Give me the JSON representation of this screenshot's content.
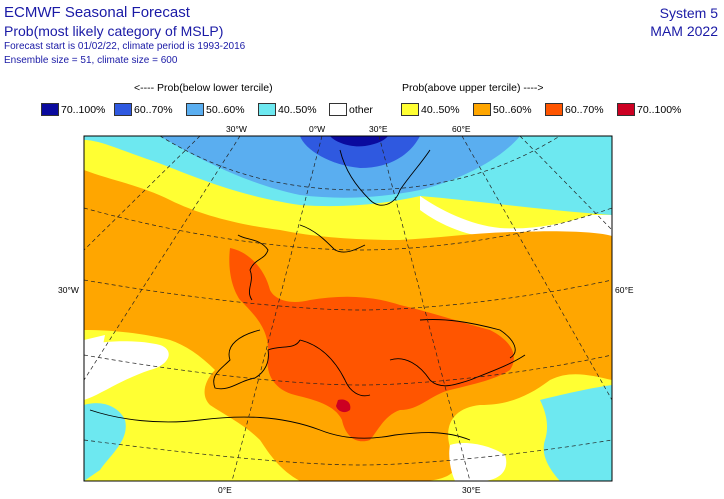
{
  "title": "ECMWF Seasonal Forecast",
  "subtitle": "Prob(most likely category of MSLP)",
  "line3": "Forecast start is 01/02/22, climate period is 1993-2016",
  "line4": "Ensemble size = 51, climate size = 600",
  "system": "System 5",
  "season": "MAM 2022",
  "legend_below": "<---- Prob(below lower tercile)",
  "legend_above": "Prob(above upper tercile) ---->",
  "legend": [
    {
      "label": "70..100%",
      "color": "#0a0a9e"
    },
    {
      "label": "60..70%",
      "color": "#2f59e0"
    },
    {
      "label": "50..60%",
      "color": "#5aaef0"
    },
    {
      "label": "40..50%",
      "color": "#6de8f0"
    },
    {
      "label": "other",
      "color": "#ffffff"
    },
    {
      "label": "40..50%",
      "color": "#ffff33"
    },
    {
      "label": "50..60%",
      "color": "#ffa600"
    },
    {
      "label": "60..70%",
      "color": "#ff5500"
    },
    {
      "label": "70..100%",
      "color": "#cc0022"
    }
  ],
  "lon_top": [
    "30°W",
    "0°W",
    "30°E",
    "60°E"
  ],
  "lon_bottom": [
    "0°E",
    "30°E"
  ],
  "lat_left": "30°W",
  "lat_right": "60°E"
}
